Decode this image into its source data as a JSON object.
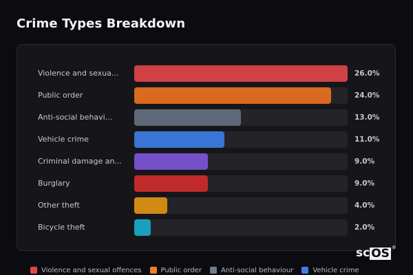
{
  "header": {
    "title": "Crime Types Breakdown"
  },
  "chart_data": {
    "type": "bar",
    "orientation": "horizontal",
    "title": "Crime Types Breakdown",
    "categories": [
      "Violence and sexual offences",
      "Public order",
      "Anti-social behaviour",
      "Vehicle crime",
      "Criminal damage and arson",
      "Burglary",
      "Other theft",
      "Bicycle theft"
    ],
    "display_labels": [
      "Violence and sexua...",
      "Public order",
      "Anti-social behavi...",
      "Vehicle crime",
      "Criminal damage an...",
      "Burglary",
      "Other theft",
      "Bicycle theft"
    ],
    "values": [
      26.0,
      24.0,
      13.0,
      11.0,
      9.0,
      9.0,
      4.0,
      2.0
    ],
    "value_labels": [
      "26.0%",
      "24.0%",
      "13.0%",
      "11.0%",
      "9.0%",
      "9.0%",
      "4.0%",
      "2.0%"
    ],
    "colors": [
      "#d04045",
      "#d96a1e",
      "#5f6878",
      "#3a74d4",
      "#7550c8",
      "#bf2a2a",
      "#d08a14",
      "#18a0bc"
    ],
    "xlim": [
      0,
      26
    ],
    "unit": "%",
    "legend_position": "bottom",
    "grid": false
  },
  "legend": [
    {
      "label": "Violence and sexual offences",
      "color": "#e0474c"
    },
    {
      "label": "Public order",
      "color": "#f07e26"
    },
    {
      "label": "Anti-social behaviour",
      "color": "#6f7b8e"
    },
    {
      "label": "Vehicle crime",
      "color": "#3f7ee8"
    }
  ],
  "branding": {
    "logo_text_a": "sc",
    "logo_text_b": "OS",
    "logo_mark": "®"
  }
}
